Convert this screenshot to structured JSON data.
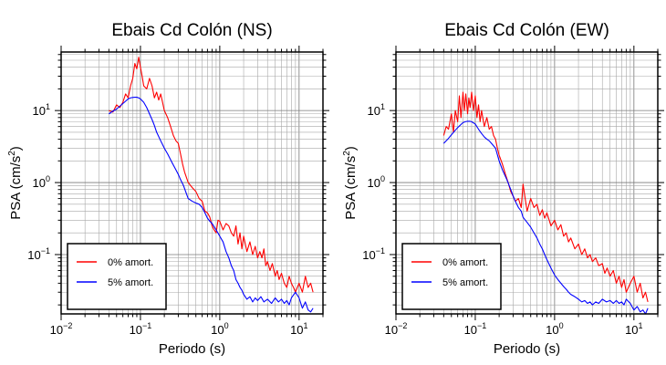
{
  "chart_data": [
    {
      "type": "line",
      "title": "Ebais Cd Colón (NS)",
      "xlabel": "Periodo (s)",
      "ylabel_main": "PSA (cm/s",
      "ylabel_sup": "2",
      "ylabel_close": ")",
      "xscale": "log",
      "yscale": "log",
      "xlim": [
        0.01,
        20
      ],
      "ylim": [
        0.015,
        65
      ],
      "grid": true,
      "legend_placement": "bottom-left",
      "x_ticks": [
        {
          "value": 0.01,
          "base": "10",
          "exp": "−2"
        },
        {
          "value": 0.1,
          "base": "10",
          "exp": "−1"
        },
        {
          "value": 1,
          "base": "10",
          "exp": "0"
        },
        {
          "value": 10,
          "base": "10",
          "exp": "1"
        }
      ],
      "y_ticks": [
        {
          "value": 0.1,
          "base": "10",
          "exp": "−1"
        },
        {
          "value": 1,
          "base": "10",
          "exp": "0"
        },
        {
          "value": 10,
          "base": "10",
          "exp": "1"
        }
      ],
      "series": [
        {
          "name": "0% amort.",
          "color": "#ff0000",
          "x": [
            0.04,
            0.045,
            0.05,
            0.055,
            0.06,
            0.065,
            0.07,
            0.075,
            0.08,
            0.085,
            0.09,
            0.095,
            0.1,
            0.105,
            0.11,
            0.12,
            0.13,
            0.14,
            0.15,
            0.16,
            0.17,
            0.18,
            0.19,
            0.2,
            0.22,
            0.24,
            0.26,
            0.28,
            0.3,
            0.32,
            0.34,
            0.36,
            0.4,
            0.45,
            0.5,
            0.55,
            0.6,
            0.65,
            0.7,
            0.75,
            0.8,
            0.85,
            0.9,
            0.95,
            1.0,
            1.1,
            1.2,
            1.3,
            1.4,
            1.5,
            1.6,
            1.7,
            1.8,
            1.9,
            2.0,
            2.2,
            2.4,
            2.6,
            2.8,
            3.0,
            3.2,
            3.4,
            3.6,
            3.8,
            4.0,
            4.3,
            4.6,
            5.0,
            5.3,
            5.6,
            6.0,
            6.5,
            7.0,
            7.5,
            8.0,
            8.5,
            9.0,
            9.5,
            10.0,
            11.0,
            12.0,
            13.0,
            14.0,
            15.0
          ],
          "y": [
            10,
            9.5,
            12,
            11,
            13,
            17,
            15,
            22,
            28,
            45,
            38,
            55,
            40,
            30,
            22,
            20,
            28,
            22,
            15,
            18,
            14,
            17,
            13,
            10,
            8,
            6,
            4.5,
            3.8,
            3.5,
            2.5,
            1.8,
            1.4,
            1.0,
            0.85,
            0.75,
            0.6,
            0.55,
            0.4,
            0.38,
            0.33,
            0.25,
            0.22,
            0.2,
            0.3,
            0.29,
            0.22,
            0.27,
            0.25,
            0.2,
            0.18,
            0.25,
            0.14,
            0.2,
            0.12,
            0.18,
            0.11,
            0.15,
            0.1,
            0.13,
            0.09,
            0.11,
            0.09,
            0.12,
            0.07,
            0.08,
            0.06,
            0.075,
            0.05,
            0.06,
            0.045,
            0.055,
            0.04,
            0.035,
            0.05,
            0.04,
            0.035,
            0.03,
            0.035,
            0.04,
            0.03,
            0.05,
            0.035,
            0.04,
            0.03
          ]
        },
        {
          "name": "5% amort.",
          "color": "#0000ff",
          "x": [
            0.04,
            0.045,
            0.05,
            0.055,
            0.06,
            0.065,
            0.07,
            0.075,
            0.08,
            0.085,
            0.09,
            0.095,
            0.1,
            0.11,
            0.12,
            0.13,
            0.14,
            0.15,
            0.16,
            0.18,
            0.2,
            0.22,
            0.25,
            0.28,
            0.3,
            0.32,
            0.35,
            0.38,
            0.4,
            0.45,
            0.5,
            0.55,
            0.6,
            0.65,
            0.7,
            0.75,
            0.8,
            0.9,
            1.0,
            1.1,
            1.2,
            1.3,
            1.4,
            1.5,
            1.6,
            1.7,
            1.8,
            1.9,
            2.0,
            2.2,
            2.4,
            2.6,
            2.8,
            3.0,
            3.3,
            3.6,
            4.0,
            4.5,
            5.0,
            5.5,
            6.0,
            6.5,
            7.0,
            7.5,
            8.0,
            9.0,
            10.0,
            11.0,
            12.0,
            13.0,
            14.0,
            15.0
          ],
          "y": [
            9,
            9.8,
            10.5,
            11.5,
            12.5,
            13.5,
            14.5,
            15,
            15.2,
            15.3,
            15.3,
            15,
            14.5,
            13,
            11,
            9,
            7.5,
            6.2,
            5,
            3.8,
            3,
            2.5,
            1.9,
            1.5,
            1.3,
            1.1,
            0.9,
            0.7,
            0.6,
            0.55,
            0.52,
            0.5,
            0.45,
            0.38,
            0.32,
            0.29,
            0.27,
            0.22,
            0.18,
            0.15,
            0.11,
            0.09,
            0.07,
            0.06,
            0.045,
            0.04,
            0.035,
            0.032,
            0.028,
            0.024,
            0.026,
            0.022,
            0.025,
            0.023,
            0.026,
            0.022,
            0.024,
            0.021,
            0.025,
            0.022,
            0.024,
            0.021,
            0.023,
            0.02,
            0.025,
            0.03,
            0.025,
            0.018,
            0.022,
            0.017,
            0.016,
            0.018
          ]
        }
      ]
    },
    {
      "type": "line",
      "title": "Ebais Cd Colón (EW)",
      "xlabel": "Periodo (s)",
      "ylabel_main": "PSA (cm/s",
      "ylabel_sup": "2",
      "ylabel_close": ")",
      "xscale": "log",
      "yscale": "log",
      "xlim": [
        0.01,
        20
      ],
      "ylim": [
        0.015,
        65
      ],
      "grid": true,
      "legend_placement": "bottom-left",
      "x_ticks": [
        {
          "value": 0.01,
          "base": "10",
          "exp": "−2"
        },
        {
          "value": 0.1,
          "base": "10",
          "exp": "−1"
        },
        {
          "value": 1,
          "base": "10",
          "exp": "0"
        },
        {
          "value": 10,
          "base": "10",
          "exp": "1"
        }
      ],
      "y_ticks": [
        {
          "value": 0.1,
          "base": "10",
          "exp": "−1"
        },
        {
          "value": 1,
          "base": "10",
          "exp": "0"
        },
        {
          "value": 10,
          "base": "10",
          "exp": "1"
        }
      ],
      "series": [
        {
          "name": "0% amort.",
          "color": "#ff0000",
          "x": [
            0.04,
            0.043,
            0.046,
            0.05,
            0.053,
            0.056,
            0.06,
            0.063,
            0.066,
            0.07,
            0.073,
            0.076,
            0.08,
            0.083,
            0.086,
            0.09,
            0.095,
            0.1,
            0.105,
            0.11,
            0.115,
            0.12,
            0.13,
            0.14,
            0.15,
            0.16,
            0.17,
            0.18,
            0.19,
            0.2,
            0.22,
            0.24,
            0.26,
            0.28,
            0.3,
            0.32,
            0.35,
            0.38,
            0.4,
            0.45,
            0.5,
            0.55,
            0.6,
            0.65,
            0.7,
            0.75,
            0.8,
            0.9,
            1.0,
            1.1,
            1.2,
            1.3,
            1.4,
            1.5,
            1.6,
            1.8,
            2.0,
            2.2,
            2.4,
            2.6,
            2.8,
            3.0,
            3.3,
            3.6,
            4.0,
            4.3,
            4.6,
            5.0,
            5.5,
            6.0,
            6.5,
            7.0,
            7.5,
            8.0,
            9.0,
            10.0,
            11.0,
            12.0,
            13.0,
            14.0,
            15.0
          ],
          "y": [
            4.5,
            6,
            5.5,
            9,
            5,
            10,
            7,
            16,
            8,
            18,
            10,
            17,
            9,
            15,
            11,
            18,
            10,
            16,
            8,
            12,
            7,
            10,
            6,
            8,
            5.5,
            6,
            4.5,
            4,
            3,
            2.4,
            1.8,
            1.3,
            1.0,
            0.75,
            0.65,
            0.55,
            0.6,
            0.45,
            0.95,
            0.4,
            0.6,
            0.45,
            0.5,
            0.35,
            0.42,
            0.32,
            0.38,
            0.25,
            0.3,
            0.22,
            0.26,
            0.18,
            0.2,
            0.15,
            0.17,
            0.12,
            0.14,
            0.1,
            0.12,
            0.09,
            0.1,
            0.08,
            0.09,
            0.07,
            0.075,
            0.055,
            0.065,
            0.05,
            0.06,
            0.04,
            0.05,
            0.035,
            0.045,
            0.03,
            0.04,
            0.05,
            0.03,
            0.04,
            0.025,
            0.03,
            0.022
          ]
        },
        {
          "name": "5% amort.",
          "color": "#0000ff",
          "x": [
            0.04,
            0.045,
            0.05,
            0.055,
            0.06,
            0.065,
            0.07,
            0.075,
            0.08,
            0.085,
            0.09,
            0.1,
            0.11,
            0.12,
            0.13,
            0.14,
            0.15,
            0.16,
            0.18,
            0.2,
            0.22,
            0.25,
            0.28,
            0.3,
            0.32,
            0.35,
            0.38,
            0.4,
            0.45,
            0.5,
            0.55,
            0.6,
            0.65,
            0.7,
            0.75,
            0.8,
            0.9,
            1.0,
            1.1,
            1.2,
            1.3,
            1.4,
            1.5,
            1.6,
            1.8,
            2.0,
            2.2,
            2.4,
            2.6,
            2.8,
            3.0,
            3.3,
            3.6,
            4.0,
            4.5,
            5.0,
            5.5,
            6.0,
            6.5,
            7.0,
            7.5,
            8.0,
            9.0,
            10.0,
            11.0,
            12.0,
            13.0,
            14.0,
            15.0
          ],
          "y": [
            3.5,
            4,
            4.6,
            5.2,
            5.8,
            6.3,
            6.8,
            7,
            7.1,
            7.1,
            7,
            6.5,
            5.5,
            4.8,
            4.3,
            4,
            3.8,
            3.5,
            3.0,
            2.0,
            1.5,
            1.1,
            0.8,
            0.65,
            0.55,
            0.45,
            0.4,
            0.33,
            0.28,
            0.24,
            0.2,
            0.17,
            0.14,
            0.12,
            0.1,
            0.085,
            0.065,
            0.052,
            0.045,
            0.04,
            0.036,
            0.033,
            0.03,
            0.028,
            0.026,
            0.024,
            0.022,
            0.023,
            0.021,
            0.022,
            0.02,
            0.022,
            0.021,
            0.024,
            0.022,
            0.023,
            0.021,
            0.023,
            0.021,
            0.022,
            0.02,
            0.024,
            0.021,
            0.017,
            0.019,
            0.016,
            0.017,
            0.015,
            0.018
          ]
        }
      ]
    }
  ]
}
